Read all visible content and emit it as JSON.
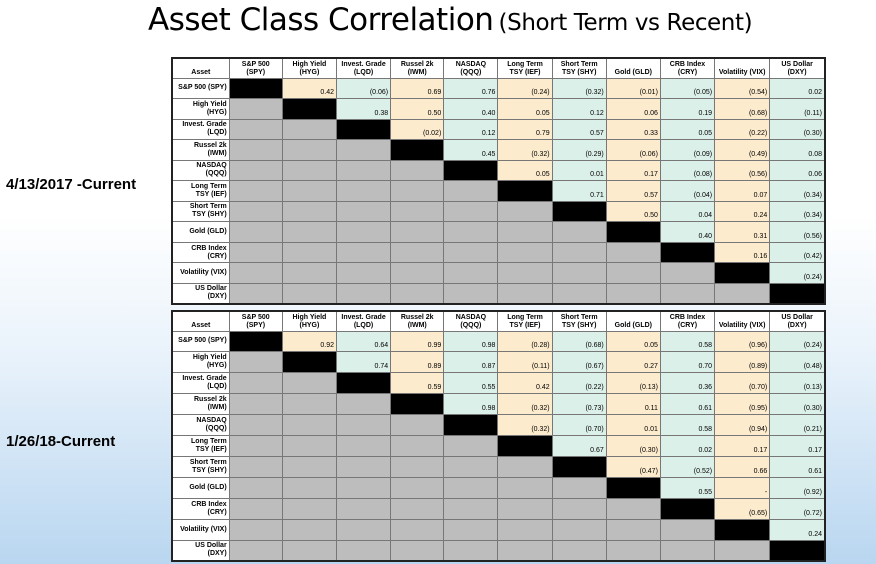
{
  "title": {
    "main": "Asset Class Correlation",
    "sub": "(Short Term vs Recent)"
  },
  "colors": {
    "diagonal": "#000000",
    "lower_triangle": "#bdbdbd",
    "peach": "#fdebcd",
    "mint": "#dcf0ea"
  },
  "chart_data": [
    {
      "type": "table",
      "period_label": "4/13/2017 -Current",
      "corner_label": "Asset",
      "columns": [
        [
          "S&P 500 (SPY)"
        ],
        [
          "High Yield",
          "(HYG)"
        ],
        [
          "Invest. Grade",
          "(LQD)"
        ],
        [
          "Russel 2k",
          "(IWM)"
        ],
        [
          "NASDAQ",
          "(QQQ)"
        ],
        [
          "Long Term",
          "TSY (IEF)"
        ],
        [
          "Short Term",
          "TSY (SHY)"
        ],
        [
          "Gold (GLD)"
        ],
        [
          "CRB Index",
          "(CRY)"
        ],
        [
          "Volatility (VIX)"
        ],
        [
          "US Dollar",
          "(DXY)"
        ]
      ],
      "rows": [
        [
          "S&P 500 (SPY)"
        ],
        [
          "High Yield",
          "(HYG)"
        ],
        [
          "Invest. Grade",
          "(LQD)"
        ],
        [
          "Russel 2k",
          "(IWM)"
        ],
        [
          "NASDAQ",
          "(QQQ)"
        ],
        [
          "Long Term",
          "TSY (IEF)"
        ],
        [
          "Short Term",
          "TSY (SHY)"
        ],
        [
          "Gold (GLD)"
        ],
        [
          "CRB Index",
          "(CRY)"
        ],
        [
          "Volatility (VIX)"
        ],
        [
          "US Dollar",
          "(DXY)"
        ]
      ],
      "values": [
        [
          null,
          "0.42",
          "(0.06)",
          "0.69",
          "0.76",
          "(0.24)",
          "(0.32)",
          "(0.01)",
          "(0.05)",
          "(0.54)",
          "0.02"
        ],
        [
          null,
          null,
          "0.38",
          "0.50",
          "0.40",
          "0.05",
          "0.12",
          "0.06",
          "0.19",
          "(0.68)",
          "(0.11)"
        ],
        [
          null,
          null,
          null,
          "(0.02)",
          "0.12",
          "0.79",
          "0.57",
          "0.33",
          "0.05",
          "(0.22)",
          "(0.30)"
        ],
        [
          null,
          null,
          null,
          null,
          "0.45",
          "(0.32)",
          "(0.29)",
          "(0.06)",
          "(0.09)",
          "(0.49)",
          "0.08"
        ],
        [
          null,
          null,
          null,
          null,
          null,
          "0.05",
          "0.01",
          "0.17",
          "(0.08)",
          "(0.56)",
          "0.06"
        ],
        [
          null,
          null,
          null,
          null,
          null,
          null,
          "0.71",
          "0.57",
          "(0.04)",
          "0.07",
          "(0.34)"
        ],
        [
          null,
          null,
          null,
          null,
          null,
          null,
          null,
          "0.50",
          "0.04",
          "0.24",
          "(0.34)"
        ],
        [
          null,
          null,
          null,
          null,
          null,
          null,
          null,
          null,
          "0.40",
          "0.31",
          "(0.56)"
        ],
        [
          null,
          null,
          null,
          null,
          null,
          null,
          null,
          null,
          null,
          "0.16",
          "(0.42)"
        ],
        [
          null,
          null,
          null,
          null,
          null,
          null,
          null,
          null,
          null,
          null,
          "(0.24)"
        ],
        [
          null,
          null,
          null,
          null,
          null,
          null,
          null,
          null,
          null,
          null,
          null
        ]
      ]
    },
    {
      "type": "table",
      "period_label": "1/26/18-Current",
      "corner_label": "Asset",
      "columns": [
        [
          "S&P 500 (SPY)"
        ],
        [
          "High Yield",
          "(HYG)"
        ],
        [
          "Invest. Grade",
          "(LQD)"
        ],
        [
          "Russel 2k",
          "(IWM)"
        ],
        [
          "NASDAQ",
          "(QQQ)"
        ],
        [
          "Long Term",
          "TSY (IEF)"
        ],
        [
          "Short Term",
          "TSY (SHY)"
        ],
        [
          "Gold (GLD)"
        ],
        [
          "CRB Index",
          "(CRY)"
        ],
        [
          "Volatility (VIX)"
        ],
        [
          "US Dollar",
          "(DXY)"
        ]
      ],
      "rows": [
        [
          "S&P 500 (SPY)"
        ],
        [
          "High Yield",
          "(HYG)"
        ],
        [
          "Invest. Grade",
          "(LQD)"
        ],
        [
          "Russel 2k",
          "(IWM)"
        ],
        [
          "NASDAQ",
          "(QQQ)"
        ],
        [
          "Long Term",
          "TSY (IEF)"
        ],
        [
          "Short Term",
          "TSY (SHY)"
        ],
        [
          "Gold (GLD)"
        ],
        [
          "CRB Index",
          "(CRY)"
        ],
        [
          "Volatility (VIX)"
        ],
        [
          "US Dollar",
          "(DXY)"
        ]
      ],
      "values": [
        [
          null,
          "0.92",
          "0.64",
          "0.99",
          "0.98",
          "(0.28)",
          "(0.68)",
          "0.05",
          "0.58",
          "(0.96)",
          "(0.24)"
        ],
        [
          null,
          null,
          "0.74",
          "0.89",
          "0.87",
          "(0.11)",
          "(0.67)",
          "0.27",
          "0.70",
          "(0.89)",
          "(0.48)"
        ],
        [
          null,
          null,
          null,
          "0.59",
          "0.55",
          "0.42",
          "(0.22)",
          "(0.13)",
          "0.36",
          "(0.70)",
          "(0.13)"
        ],
        [
          null,
          null,
          null,
          null,
          "0.98",
          "(0.32)",
          "(0.73)",
          "0.11",
          "0.61",
          "(0.95)",
          "(0.30)"
        ],
        [
          null,
          null,
          null,
          null,
          null,
          "(0.32)",
          "(0.70)",
          "0.01",
          "0.58",
          "(0.94)",
          "(0.21)"
        ],
        [
          null,
          null,
          null,
          null,
          null,
          null,
          "0.67",
          "(0.30)",
          "0.02",
          "0.17",
          "0.17"
        ],
        [
          null,
          null,
          null,
          null,
          null,
          null,
          null,
          "(0.47)",
          "(0.52)",
          "0.66",
          "0.61"
        ],
        [
          null,
          null,
          null,
          null,
          null,
          null,
          null,
          null,
          "0.55",
          "-",
          "(0.92)"
        ],
        [
          null,
          null,
          null,
          null,
          null,
          null,
          null,
          null,
          null,
          "(0.65)",
          "(0.72)"
        ],
        [
          null,
          null,
          null,
          null,
          null,
          null,
          null,
          null,
          null,
          null,
          "0.24"
        ],
        [
          null,
          null,
          null,
          null,
          null,
          null,
          null,
          null,
          null,
          null,
          null
        ]
      ]
    }
  ]
}
